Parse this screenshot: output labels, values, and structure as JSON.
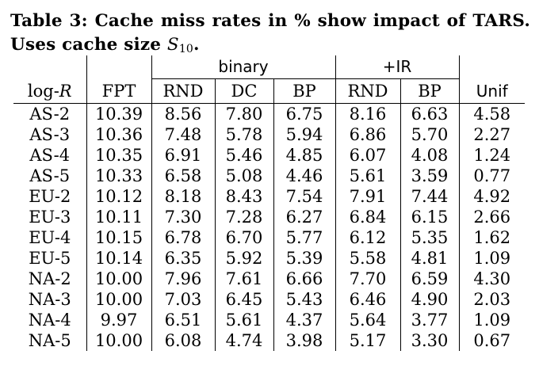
{
  "caption": {
    "label": "Table 3:",
    "text_before_symbol": "Cache miss rates in % show impact of TARS. Uses cache size ",
    "symbol": "S",
    "symbol_subscript": "10",
    "text_after_symbol": "."
  },
  "table": {
    "group_headers": {
      "binary": "binary",
      "ir": "+IR"
    },
    "col_headers": {
      "logr_prefix": "log-",
      "logr_var": "R",
      "fpt": "FPT",
      "bin_rnd": "RND",
      "bin_dc": "DC",
      "bin_bp": "BP",
      "ir_rnd": "RND",
      "ir_bp": "BP",
      "unif": "Unif"
    },
    "rows": [
      [
        "AS-2",
        "10.39",
        "8.56",
        "7.80",
        "6.75",
        "8.16",
        "6.63",
        "4.58"
      ],
      [
        "AS-3",
        "10.36",
        "7.48",
        "5.78",
        "5.94",
        "6.86",
        "5.70",
        "2.27"
      ],
      [
        "AS-4",
        "10.35",
        "6.91",
        "5.46",
        "4.85",
        "6.07",
        "4.08",
        "1.24"
      ],
      [
        "AS-5",
        "10.33",
        "6.58",
        "5.08",
        "4.46",
        "5.61",
        "3.59",
        "0.77"
      ],
      [
        "EU-2",
        "10.12",
        "8.18",
        "8.43",
        "7.54",
        "7.91",
        "7.44",
        "4.92"
      ],
      [
        "EU-3",
        "10.11",
        "7.30",
        "7.28",
        "6.27",
        "6.84",
        "6.15",
        "2.66"
      ],
      [
        "EU-4",
        "10.15",
        "6.78",
        "6.70",
        "5.77",
        "6.12",
        "5.35",
        "1.62"
      ],
      [
        "EU-5",
        "10.14",
        "6.35",
        "5.92",
        "5.39",
        "5.58",
        "4.81",
        "1.09"
      ],
      [
        "NA-2",
        "10.00",
        "7.96",
        "7.61",
        "6.66",
        "7.70",
        "6.59",
        "4.30"
      ],
      [
        "NA-3",
        "10.00",
        "7.03",
        "6.45",
        "5.43",
        "6.46",
        "4.90",
        "2.03"
      ],
      [
        "NA-4",
        "9.97",
        "6.51",
        "5.61",
        "4.37",
        "5.64",
        "3.77",
        "1.09"
      ],
      [
        "NA-5",
        "10.00",
        "6.08",
        "4.74",
        "3.98",
        "5.17",
        "3.30",
        "0.67"
      ]
    ]
  }
}
